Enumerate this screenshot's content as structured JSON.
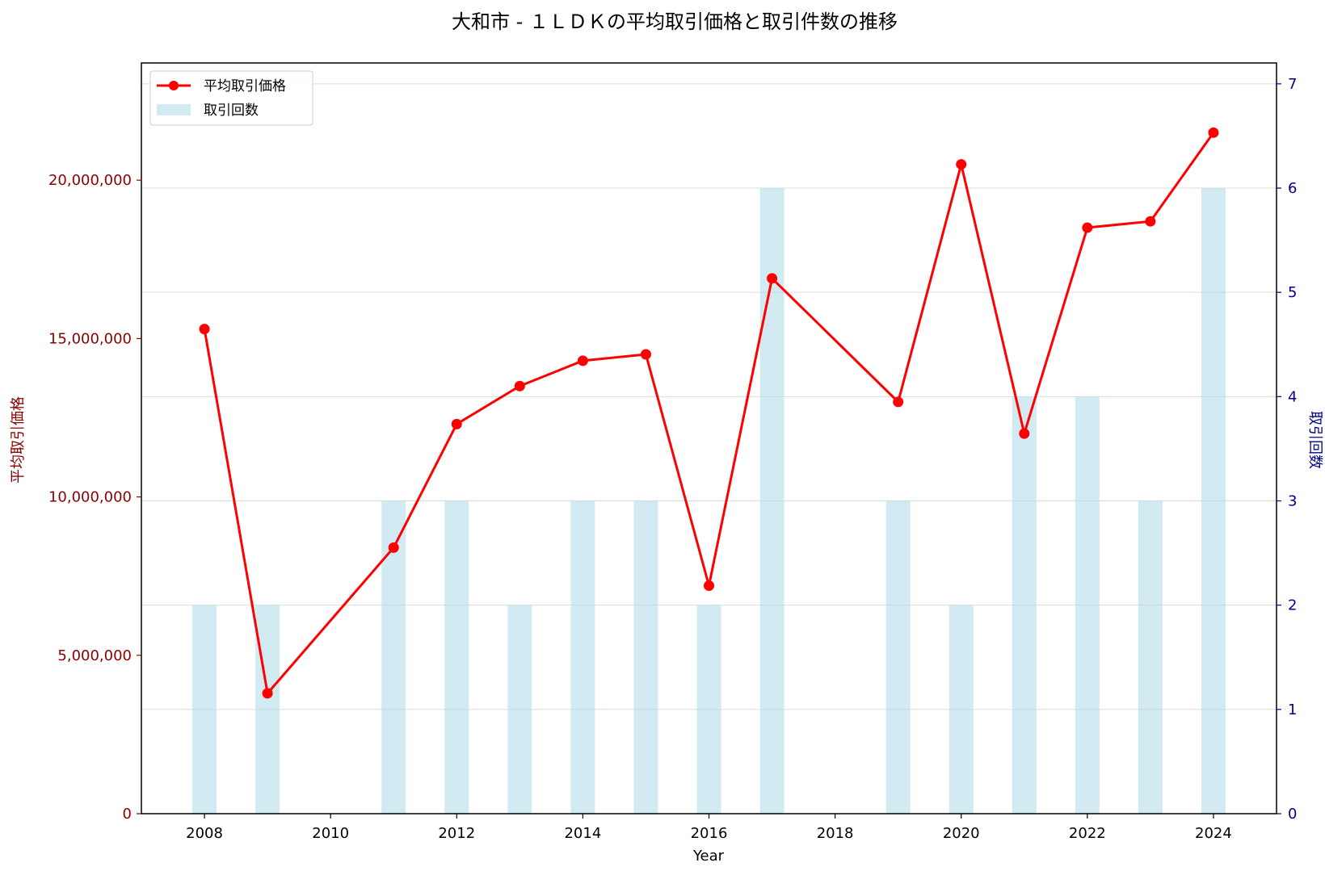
{
  "chart_data": {
    "type": "bar+line",
    "title": "大和市 - １ＬＤＫの平均取引価格と取引件数の推移",
    "xlabel": "Year",
    "ylabel_left": "平均取引価格",
    "ylabel_right": "取引回数",
    "xlim": [
      2007,
      2025
    ],
    "ylim_left": [
      0,
      23700000
    ],
    "ylim_right": [
      0,
      7.2
    ],
    "x_ticks": [
      2008,
      2010,
      2012,
      2014,
      2016,
      2018,
      2020,
      2022,
      2024
    ],
    "x_tick_labels": [
      "2008",
      "2010",
      "2012",
      "2014",
      "2016",
      "2018",
      "2020",
      "2022",
      "2024"
    ],
    "y_left_ticks": [
      0,
      5000000,
      10000000,
      15000000,
      20000000
    ],
    "y_left_tick_labels": [
      "0",
      "5,000,000",
      "10,000,000",
      "15,000,000",
      "20,000,000"
    ],
    "y_right_ticks": [
      0,
      1,
      2,
      3,
      4,
      5,
      6,
      7
    ],
    "y_right_tick_labels": [
      "0",
      "1",
      "2",
      "3",
      "4",
      "5",
      "6",
      "7"
    ],
    "grid": "horizontal (right axis)",
    "legend_position": "top-left",
    "line_series": {
      "name": "平均取引価格",
      "color": "#ff0000",
      "x": [
        2008,
        2009,
        2011,
        2012,
        2013,
        2014,
        2015,
        2016,
        2017,
        2019,
        2020,
        2021,
        2022,
        2023,
        2024
      ],
      "y": [
        15300000,
        3800000,
        8400000,
        12300000,
        13500000,
        14300000,
        14500000,
        7200000,
        16900000,
        13000000,
        20500000,
        12000000,
        18500000,
        18700000,
        21500000
      ]
    },
    "bar_series": {
      "name": "取引回数",
      "color": "#add8e6",
      "x": [
        2008,
        2009,
        2011,
        2012,
        2013,
        2014,
        2015,
        2016,
        2017,
        2019,
        2020,
        2021,
        2022,
        2023,
        2024
      ],
      "values": [
        2,
        2,
        3,
        3,
        2,
        3,
        3,
        2,
        6,
        3,
        2,
        4,
        4,
        3,
        6
      ]
    },
    "colors": {
      "left_axis": "#8b0000",
      "right_axis": "#00008b"
    }
  }
}
